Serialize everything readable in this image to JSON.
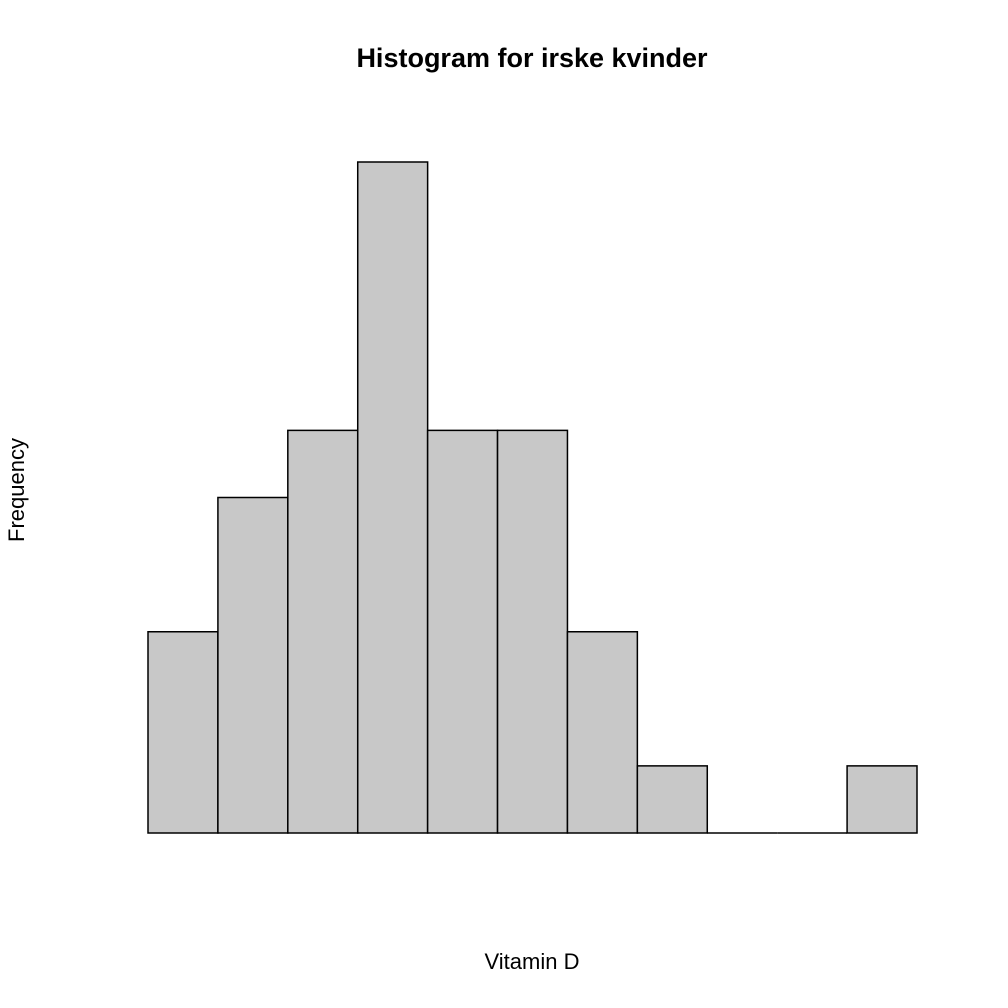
{
  "chart_data": {
    "type": "bar",
    "title": "Histogram for irske kvinder",
    "x_label": "Vitamin D",
    "y_label": "Frequency",
    "categories": [
      null,
      null,
      null,
      null,
      null,
      null,
      null,
      null,
      null,
      null,
      null
    ],
    "values": [
      3,
      5,
      6,
      10,
      6,
      6,
      3,
      1,
      0,
      0,
      1
    ],
    "color": "#c8c8c8",
    "ylim": [
      0,
      10
    ]
  }
}
